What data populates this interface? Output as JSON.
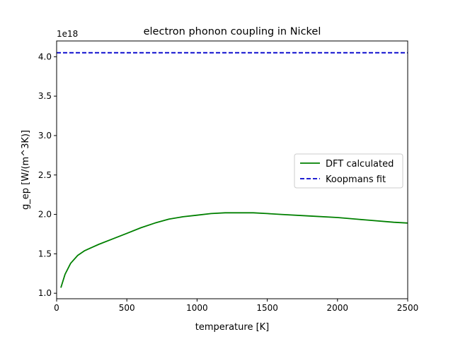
{
  "chart_data": {
    "type": "line",
    "title": "electron phonon coupling in Nickel",
    "xlabel": "temperature [K]",
    "ylabel": "g_ep [W/(m^3K)]",
    "y_offset_label": "1e18",
    "y_scale_factor": 1e+18,
    "xlim": [
      0,
      2500
    ],
    "ylim": [
      0.93,
      4.2
    ],
    "x_ticks": [
      0,
      500,
      1000,
      1500,
      2000,
      2500
    ],
    "x_tick_labels": [
      "0",
      "500",
      "1000",
      "1500",
      "2000",
      "2500"
    ],
    "y_ticks": [
      1.0,
      1.5,
      2.0,
      2.5,
      3.0,
      3.5,
      4.0
    ],
    "y_tick_labels": [
      "1.0",
      "1.5",
      "2.0",
      "2.5",
      "3.0",
      "3.5",
      "4.0"
    ],
    "grid": false,
    "legend_position": "center-right",
    "series": [
      {
        "name": "DFT calculated",
        "color": "#008000",
        "style": "solid",
        "x": [
          30,
          60,
          100,
          150,
          200,
          250,
          300,
          400,
          500,
          600,
          700,
          800,
          900,
          1000,
          1100,
          1200,
          1300,
          1400,
          1500,
          1600,
          1800,
          2000,
          2200,
          2400,
          2500
        ],
        "y": [
          1.07,
          1.24,
          1.38,
          1.48,
          1.54,
          1.58,
          1.62,
          1.69,
          1.76,
          1.83,
          1.89,
          1.94,
          1.97,
          1.99,
          2.01,
          2.02,
          2.02,
          2.02,
          2.01,
          2.0,
          1.98,
          1.96,
          1.93,
          1.9,
          1.89
        ]
      },
      {
        "name": "Koopmans fit",
        "color": "#0000cc",
        "style": "dashed",
        "x": [
          0,
          2500
        ],
        "y": [
          4.05,
          4.05
        ]
      }
    ]
  }
}
